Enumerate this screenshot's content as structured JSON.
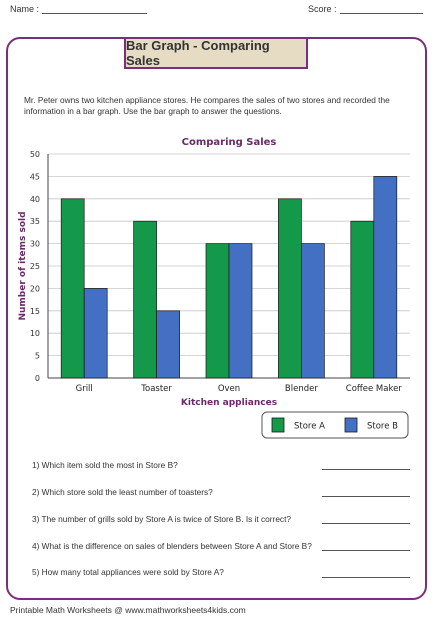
{
  "header": {
    "name_label": "Name :",
    "score_label": "Score :"
  },
  "worksheet": {
    "title": "Bar Graph - Comparing Sales",
    "intro": "Mr. Peter owns two kitchen appliance stores. He compares the sales of two stores and recorded the information in a bar graph. Use the bar graph to answer the questions."
  },
  "chart_data": {
    "type": "bar",
    "title": "Comparing Sales",
    "xlabel": "Kitchen appliances",
    "ylabel": "Number of items sold",
    "categories": [
      "Grill",
      "Toaster",
      "Oven",
      "Blender",
      "Coffee Maker"
    ],
    "series": [
      {
        "name": "Store A",
        "values": [
          40,
          35,
          30,
          40,
          35
        ],
        "color": "#14994a"
      },
      {
        "name": "Store B",
        "values": [
          20,
          15,
          30,
          30,
          45
        ],
        "color": "#4470c4"
      }
    ],
    "ylim": [
      0,
      50
    ],
    "yticks": [
      0,
      5,
      10,
      15,
      20,
      25,
      30,
      35,
      40,
      45,
      50
    ],
    "grid": true,
    "legend_position": "bottom-right"
  },
  "questions": [
    "1) Which item sold the most in Store B?",
    "2) Which store sold the least number of toasters?",
    "3) The number of grills sold by Store A is twice of Store B. Is it correct?",
    "4) What is the difference on sales of blenders between Store A and Store B?",
    "5) How many total appliances were sold by Store A?"
  ],
  "footer": "Printable Math Worksheets @ www.mathworksheets4kids.com"
}
